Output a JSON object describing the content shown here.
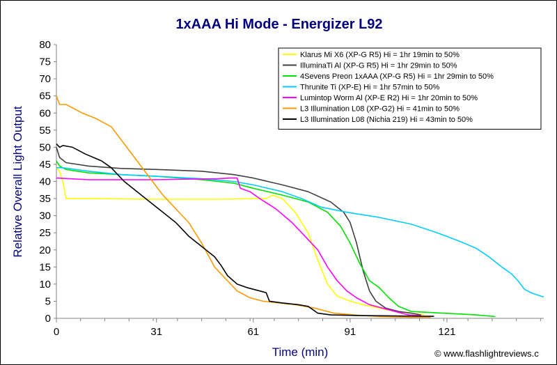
{
  "chart_data": {
    "type": "line",
    "title": "1xAAA Hi Mode - Energizer L92",
    "xlabel": "Time (min)",
    "ylabel": "Relative Overall Light Output",
    "xlim": [
      0,
      151
    ],
    "ylim": [
      0,
      80
    ],
    "xticks": [
      0,
      31,
      61,
      91,
      121
    ],
    "yticks": [
      0,
      5,
      10,
      15,
      20,
      25,
      30,
      35,
      40,
      45,
      50,
      55,
      60,
      65,
      70,
      75,
      80
    ],
    "grid": false,
    "legend_position": "top-right",
    "series": [
      {
        "name": "Klarus Mi X6 (XP-G R5) Hi = 1hr 19min to 50%",
        "color": "#ffff00",
        "points": [
          [
            0,
            44
          ],
          [
            1,
            43
          ],
          [
            2,
            40
          ],
          [
            3,
            35
          ],
          [
            10,
            35
          ],
          [
            30,
            34.8
          ],
          [
            50,
            34.8
          ],
          [
            65,
            35
          ],
          [
            67,
            36
          ],
          [
            70,
            35
          ],
          [
            74,
            31
          ],
          [
            78,
            25
          ],
          [
            81,
            17
          ],
          [
            84,
            10
          ],
          [
            87,
            6.5
          ],
          [
            91,
            5
          ],
          [
            95,
            4
          ],
          [
            100,
            3
          ],
          [
            105,
            2
          ],
          [
            110,
            1.5
          ],
          [
            114,
            1
          ]
        ]
      },
      {
        "name": "IlluminaTi Al (XP-G R5) Hi = 1hr 29min to 50%",
        "color": "#404040",
        "points": [
          [
            0,
            50
          ],
          [
            1,
            47
          ],
          [
            3,
            45.5
          ],
          [
            10,
            44.5
          ],
          [
            20,
            43.8
          ],
          [
            31,
            43.5
          ],
          [
            45,
            43
          ],
          [
            55,
            42
          ],
          [
            61,
            41
          ],
          [
            70,
            39
          ],
          [
            78,
            37
          ],
          [
            85,
            34
          ],
          [
            89,
            31
          ],
          [
            91,
            28
          ],
          [
            93,
            22
          ],
          [
            95,
            14
          ],
          [
            97,
            8
          ],
          [
            99,
            5
          ],
          [
            102,
            3
          ],
          [
            106,
            2
          ],
          [
            110,
            1.5
          ],
          [
            113,
            1
          ]
        ]
      },
      {
        "name": "4Sevens Preon 1xAAA (XP-G R5) Hi = 1hr 29min to 50%",
        "color": "#00e000",
        "points": [
          [
            0,
            46
          ],
          [
            1,
            44.5
          ],
          [
            3,
            43.5
          ],
          [
            10,
            42.5
          ],
          [
            20,
            42
          ],
          [
            31,
            41.5
          ],
          [
            45,
            40.5
          ],
          [
            55,
            39.5
          ],
          [
            61,
            38
          ],
          [
            70,
            36
          ],
          [
            78,
            34
          ],
          [
            84,
            31
          ],
          [
            88,
            27
          ],
          [
            91,
            22
          ],
          [
            94,
            16
          ],
          [
            97,
            11
          ],
          [
            100,
            9
          ],
          [
            103,
            6
          ],
          [
            106,
            3.5
          ],
          [
            110,
            2
          ],
          [
            120,
            1.5
          ],
          [
            130,
            1
          ],
          [
            136,
            0.5
          ]
        ]
      },
      {
        "name": "Thrunite Ti (XP-E) Hi = 1hr 57min to 50%",
        "color": "#00ccff",
        "points": [
          [
            0,
            44
          ],
          [
            2,
            44
          ],
          [
            10,
            43
          ],
          [
            20,
            42
          ],
          [
            31,
            41.5
          ],
          [
            45,
            40.8
          ],
          [
            55,
            40
          ],
          [
            61,
            39
          ],
          [
            70,
            37
          ],
          [
            76,
            35
          ],
          [
            82,
            32.5
          ],
          [
            90,
            31
          ],
          [
            100,
            29.5
          ],
          [
            110,
            27.5
          ],
          [
            118,
            25
          ],
          [
            125,
            22.5
          ],
          [
            130,
            20.5
          ],
          [
            134,
            18
          ],
          [
            138,
            15
          ],
          [
            141,
            13
          ],
          [
            143,
            11
          ],
          [
            145,
            8.5
          ],
          [
            147,
            7.5
          ],
          [
            151,
            6.2
          ]
        ]
      },
      {
        "name": "Lumintop Worm Al (XP-E R2) Hi = 1hr 20min to 50%",
        "color": "#ff00ff",
        "points": [
          [
            0,
            41
          ],
          [
            10,
            40.5
          ],
          [
            30,
            40.5
          ],
          [
            50,
            40.8
          ],
          [
            54,
            41
          ],
          [
            56,
            41
          ],
          [
            57,
            38
          ],
          [
            60,
            37
          ],
          [
            63,
            35
          ],
          [
            68,
            32
          ],
          [
            73,
            28
          ],
          [
            77,
            24
          ],
          [
            81,
            20
          ],
          [
            84,
            15
          ],
          [
            87,
            11
          ],
          [
            90,
            8
          ],
          [
            93,
            6
          ],
          [
            97,
            4
          ],
          [
            101,
            3
          ],
          [
            105,
            2
          ],
          [
            109,
            1
          ],
          [
            113,
            0.8
          ]
        ]
      },
      {
        "name": "L3 Illumination L08 (XP-G2) Hi = 41min to 50%",
        "color": "#ff9900",
        "points": [
          [
            0,
            65
          ],
          [
            1,
            62.5
          ],
          [
            3,
            62.5
          ],
          [
            8,
            60
          ],
          [
            12,
            58.5
          ],
          [
            17,
            56
          ],
          [
            21,
            51
          ],
          [
            25,
            46
          ],
          [
            29,
            41
          ],
          [
            33,
            36
          ],
          [
            37,
            32
          ],
          [
            41,
            28
          ],
          [
            45,
            22
          ],
          [
            49,
            15
          ],
          [
            53,
            11
          ],
          [
            56,
            8
          ],
          [
            60,
            6
          ],
          [
            64,
            5
          ],
          [
            69,
            4.5
          ],
          [
            74,
            4
          ],
          [
            80,
            3
          ],
          [
            86,
            1.5
          ],
          [
            92,
            1
          ],
          [
            100,
            0.5
          ],
          [
            110,
            0.3
          ],
          [
            116,
            0.3
          ]
        ]
      },
      {
        "name": "L3 Illumination L08 (Nichia 219) Hi = 43min to 50%",
        "color": "#000000",
        "points": [
          [
            0,
            51
          ],
          [
            1,
            50
          ],
          [
            2,
            50.5
          ],
          [
            5,
            50
          ],
          [
            9,
            48
          ],
          [
            14,
            46
          ],
          [
            17,
            44
          ],
          [
            21,
            40
          ],
          [
            25,
            37
          ],
          [
            29,
            34
          ],
          [
            33,
            31
          ],
          [
            37,
            28
          ],
          [
            41,
            24
          ],
          [
            45,
            21
          ],
          [
            49,
            18
          ],
          [
            51,
            15.5
          ],
          [
            53,
            12.5
          ],
          [
            56,
            10
          ],
          [
            59,
            9
          ],
          [
            63,
            8
          ],
          [
            65,
            7.5
          ],
          [
            66,
            5
          ],
          [
            70,
            4.5
          ],
          [
            75,
            4
          ],
          [
            78,
            3.5
          ],
          [
            81,
            1.5
          ],
          [
            85,
            1
          ],
          [
            95,
            0.8
          ],
          [
            105,
            0.7
          ],
          [
            115,
            0.6
          ],
          [
            117,
            0.6
          ]
        ]
      }
    ],
    "footer": "© www.flashlightreviews.c"
  }
}
